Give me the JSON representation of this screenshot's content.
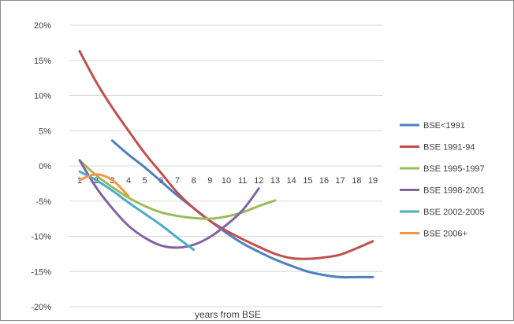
{
  "chart_data": {
    "type": "line",
    "xlabel": "years from BSE",
    "ylabel": "",
    "x": [
      1,
      2,
      3,
      4,
      5,
      6,
      7,
      8,
      9,
      10,
      11,
      12,
      13,
      14,
      15,
      16,
      17,
      18,
      19
    ],
    "xlim": [
      1,
      19
    ],
    "ylim": [
      -0.2,
      0.2
    ],
    "yticks": [
      0.2,
      0.15,
      0.1,
      0.05,
      0.0,
      -0.05,
      -0.1,
      -0.15,
      -0.2
    ],
    "ytick_labels": [
      "20%",
      "15%",
      "10%",
      "5%",
      "0%",
      "-5%",
      "-10%",
      "-15%",
      "-20%"
    ],
    "grid": "horizontal",
    "legend_position": "right",
    "series": [
      {
        "name": "BSE<1991",
        "color": "#4f81bd",
        "x": [
          3,
          4,
          5,
          6,
          7,
          8,
          9,
          10,
          11,
          12,
          13,
          14,
          15,
          16,
          17,
          18,
          19
        ],
        "values": [
          0.036,
          0.016,
          -0.002,
          -0.022,
          -0.042,
          -0.06,
          -0.078,
          -0.095,
          -0.11,
          -0.122,
          -0.133,
          -0.142,
          -0.15,
          -0.155,
          -0.158,
          -0.158,
          -0.158
        ]
      },
      {
        "name": "BSE 1991-94",
        "color": "#c0504d",
        "x": [
          1,
          2,
          3,
          4,
          5,
          6,
          7,
          8,
          9,
          10,
          11,
          12,
          13,
          14,
          15,
          16,
          17,
          18,
          19
        ],
        "values": [
          0.163,
          0.12,
          0.083,
          0.05,
          0.018,
          -0.01,
          -0.038,
          -0.06,
          -0.078,
          -0.092,
          -0.104,
          -0.115,
          -0.125,
          -0.131,
          -0.132,
          -0.13,
          -0.126,
          -0.117,
          -0.107
        ]
      },
      {
        "name": "BSE 1995-1997",
        "color": "#9bbb59",
        "x": [
          1,
          2,
          3,
          4,
          5,
          6,
          7,
          8,
          9,
          10,
          11,
          12,
          13
        ],
        "values": [
          0.008,
          -0.013,
          -0.03,
          -0.045,
          -0.057,
          -0.066,
          -0.071,
          -0.074,
          -0.075,
          -0.072,
          -0.066,
          -0.057,
          -0.049
        ]
      },
      {
        "name": "BSE 1998-2001",
        "color": "#8064a2",
        "x": [
          1,
          2,
          3,
          4,
          5,
          6,
          7,
          8,
          9,
          10,
          11,
          12
        ],
        "values": [
          0.008,
          -0.03,
          -0.06,
          -0.085,
          -0.102,
          -0.113,
          -0.116,
          -0.112,
          -0.101,
          -0.084,
          -0.063,
          -0.032
        ]
      },
      {
        "name": "BSE 2002-2005",
        "color": "#4bacc6",
        "x": [
          1,
          2,
          3,
          4,
          5,
          6,
          7,
          8
        ],
        "values": [
          -0.008,
          -0.02,
          -0.035,
          -0.052,
          -0.068,
          -0.084,
          -0.102,
          -0.119
        ]
      },
      {
        "name": "BSE 2006+",
        "color": "#f79646",
        "x": [
          1,
          2,
          3,
          4
        ],
        "values": [
          -0.02,
          -0.012,
          -0.02,
          -0.043
        ]
      }
    ]
  }
}
